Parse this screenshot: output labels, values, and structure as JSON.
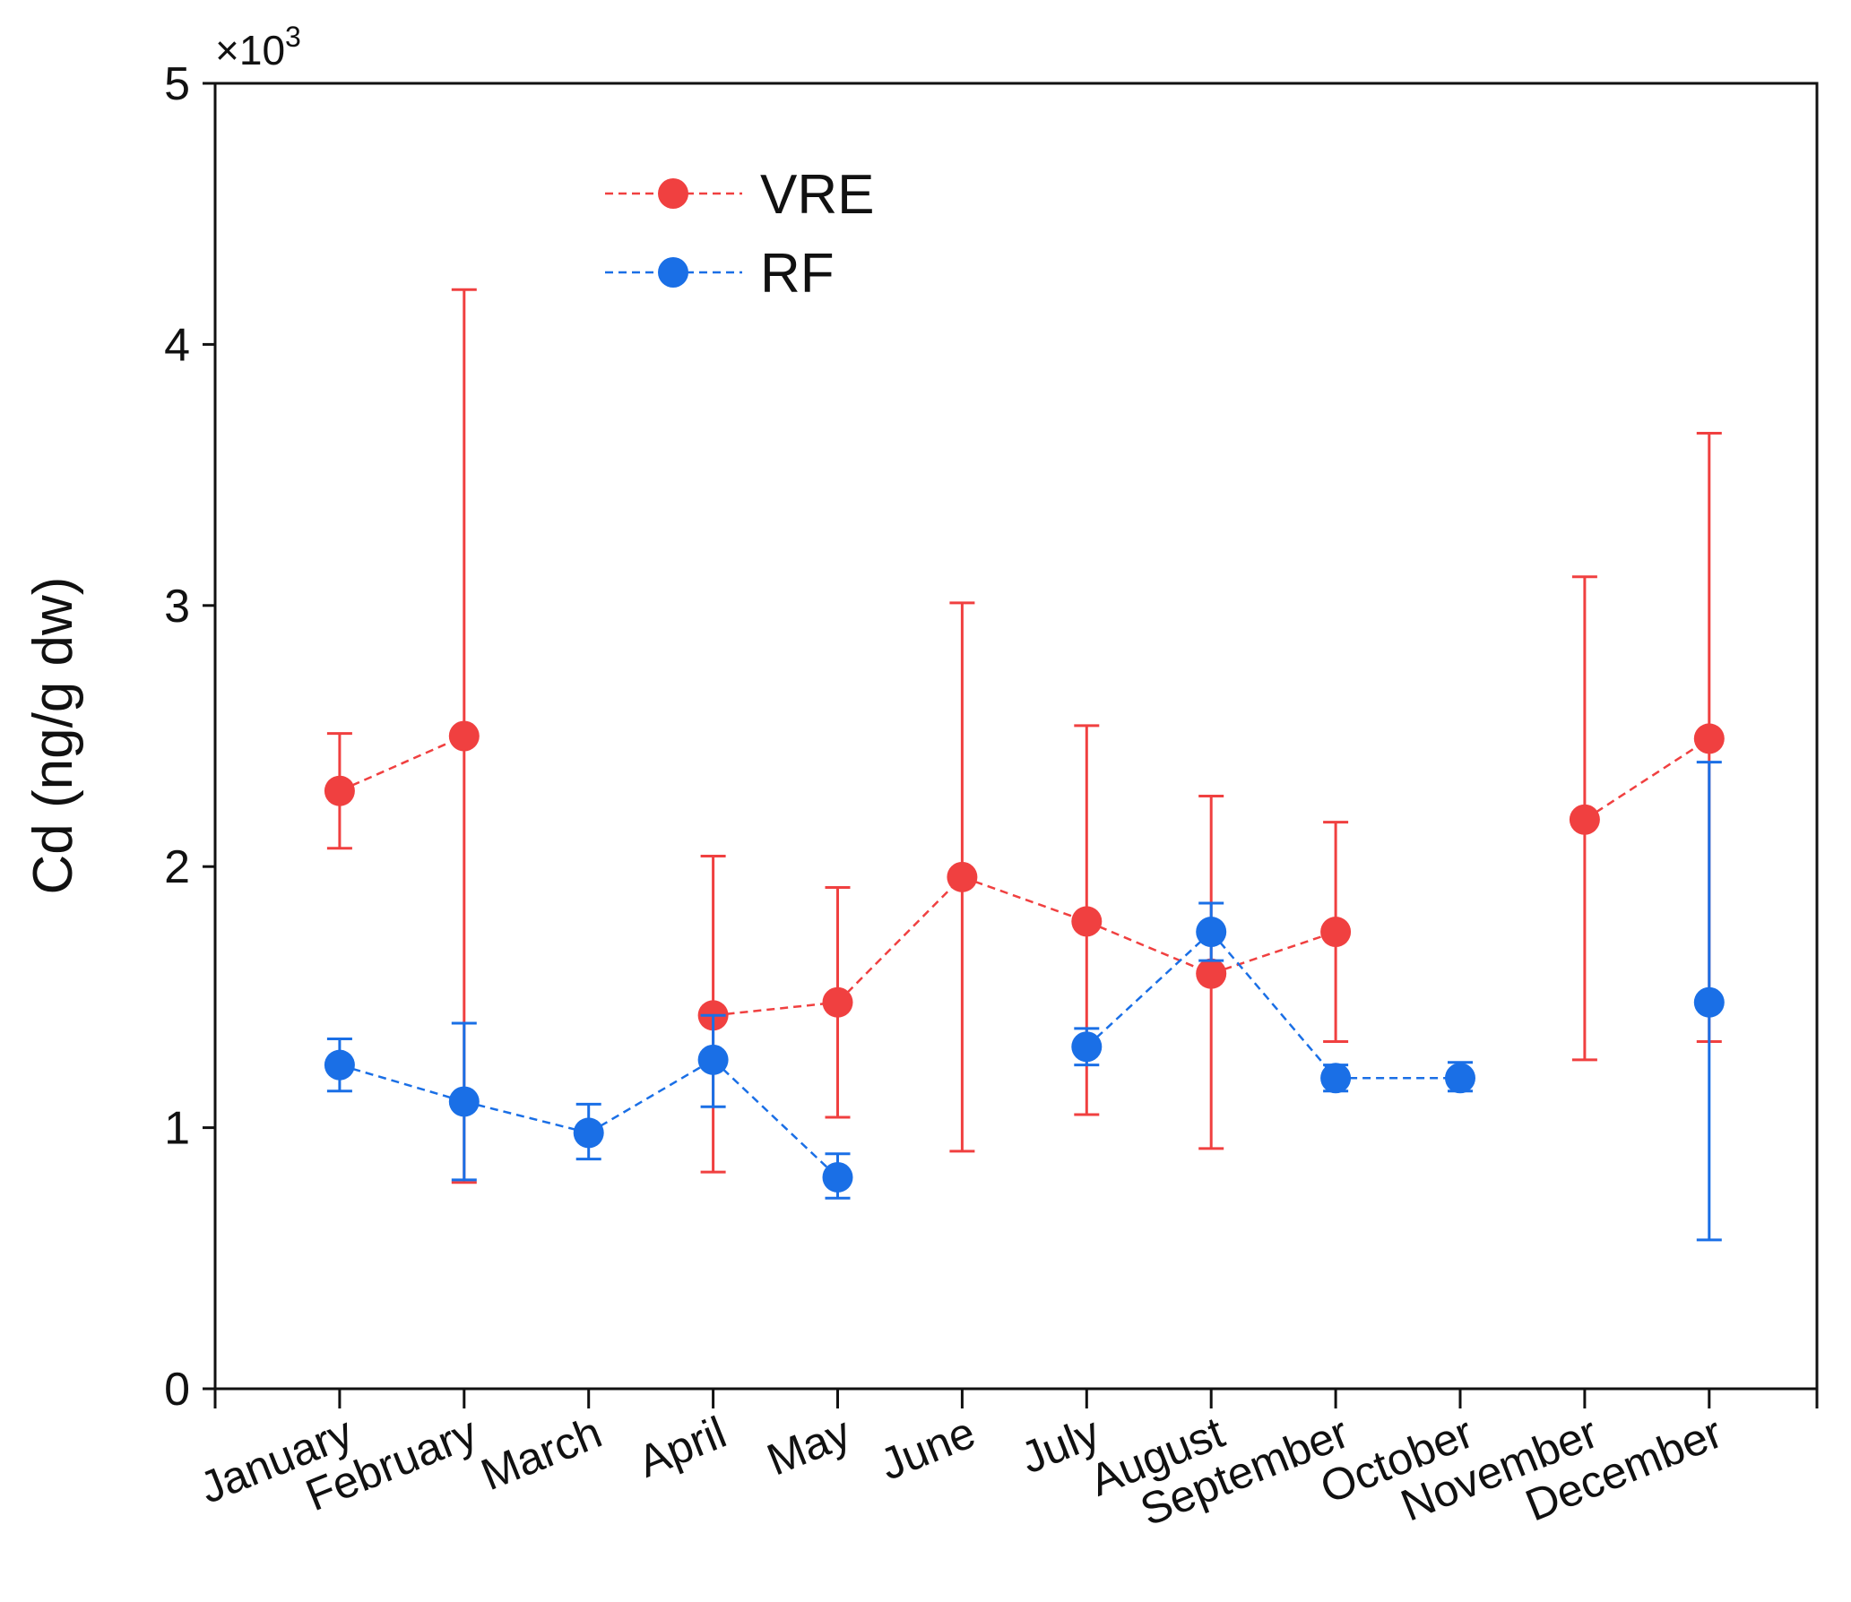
{
  "chart_data": {
    "type": "line",
    "ylabel": "Cd (ng/g dw)",
    "y_multiplier": "×10",
    "y_multiplier_exp": "3",
    "ylim": [
      0,
      5
    ],
    "yticks": [
      0,
      1,
      2,
      3,
      4,
      5
    ],
    "ytick_labels": [
      "0",
      "1",
      "2",
      "3",
      "4",
      "5"
    ],
    "categories": [
      "January",
      "February",
      "March",
      "April",
      "May",
      "June",
      "July",
      "August",
      "September",
      "October",
      "November",
      "December"
    ],
    "legend_position": "top-left",
    "series": [
      {
        "name": "VRE",
        "color": "#f04040",
        "values": [
          2.29,
          2.5,
          null,
          1.43,
          1.48,
          1.96,
          1.79,
          1.59,
          1.75,
          null,
          2.18,
          2.49
        ],
        "err_low": [
          2.07,
          0.79,
          null,
          0.83,
          1.04,
          0.91,
          1.05,
          0.92,
          1.33,
          null,
          1.26,
          1.33
        ],
        "err_high": [
          2.51,
          4.21,
          null,
          2.04,
          1.92,
          3.01,
          2.54,
          2.27,
          2.17,
          null,
          3.11,
          3.66
        ]
      },
      {
        "name": "RF",
        "color": "#1a6fe6",
        "values": [
          1.24,
          1.1,
          0.98,
          1.26,
          0.81,
          null,
          1.31,
          1.75,
          1.19,
          1.19,
          null,
          1.48
        ],
        "err_low": [
          1.14,
          0.8,
          0.88,
          1.08,
          0.73,
          null,
          1.24,
          1.64,
          1.14,
          1.14,
          null,
          0.57
        ],
        "err_high": [
          1.34,
          1.4,
          1.09,
          1.43,
          0.9,
          null,
          1.38,
          1.86,
          1.24,
          1.25,
          null,
          2.4
        ]
      }
    ]
  }
}
